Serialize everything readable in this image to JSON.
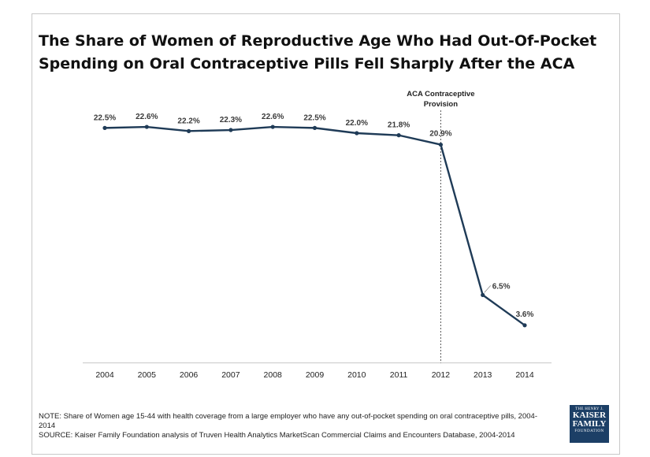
{
  "title_line1": "The Share of Women of Reproductive Age Who Had Out-Of-Pocket",
  "title_line2": "Spending on Oral Contraceptive Pills Fell Sharply After the ACA",
  "notes": {
    "note": "NOTE: Share of Women age 15-44 with health coverage from a large employer who have any out-of-pocket spending on oral contraceptive pills, 2004-2014",
    "source": "SOURCE: Kaiser Family Foundation analysis of Truven Health Analytics MarketScan Commercial Claims and Encounters Database, 2004-2014"
  },
  "logo": {
    "line1": "THE HENRY J.",
    "line2": "KAISER",
    "line3": "FAMILY",
    "line4": "FOUNDATION"
  },
  "colors": {
    "line": "#1f3b57",
    "marker": "#1f3b57",
    "reference": "#555555",
    "axis": "#d0d0d0"
  },
  "chart_data": {
    "type": "line",
    "x": [
      "2004",
      "2005",
      "2006",
      "2007",
      "2008",
      "2009",
      "2010",
      "2011",
      "2012",
      "2013",
      "2014"
    ],
    "series": [
      {
        "values": [
          22.5,
          22.6,
          22.2,
          22.3,
          22.6,
          22.5,
          22.0,
          21.8,
          20.9,
          6.5,
          3.6
        ]
      }
    ],
    "data_labels": [
      "22.5%",
      "22.6%",
      "22.2%",
      "22.3%",
      "22.6%",
      "22.5%",
      "22.0%",
      "21.8%",
      "20.9%",
      "6.5%",
      "3.6%"
    ],
    "ylim": [
      0,
      27
    ],
    "grid": false,
    "annotation": {
      "x": "2012",
      "text_line1": "ACA Contraceptive",
      "text_line2": "Provision"
    }
  }
}
